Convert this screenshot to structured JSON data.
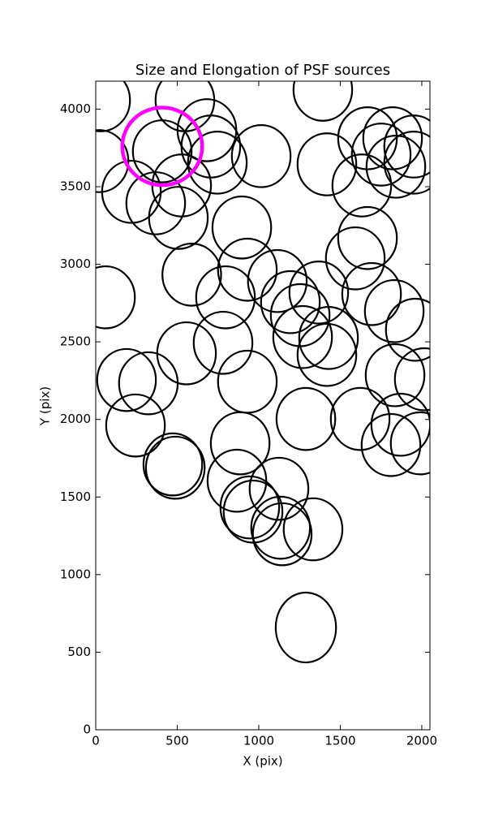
{
  "chart_data": {
    "type": "ellipse",
    "title": "Size and Elongation of PSF sources",
    "xlabel": "X (pix)",
    "ylabel": "Y (pix)",
    "xlim": [
      0,
      2050
    ],
    "ylim": [
      0,
      4180
    ],
    "xticks": [
      0,
      500,
      1000,
      1500,
      2000
    ],
    "yticks": [
      0,
      500,
      1000,
      1500,
      2000,
      2500,
      3000,
      3500,
      4000
    ],
    "sources": {
      "color": "#000000",
      "x": [
        30,
        547,
        1393,
        682,
        20,
        408,
        706,
        746,
        1015,
        1418,
        1667,
        1821,
        1950,
        1751,
        1841,
        1950,
        1632,
        219,
        368,
        527,
        507,
        896,
        1667,
        1592,
        589,
        930,
        1114,
        796,
        60,
        1194,
        1368,
        1692,
        1254,
        1831,
        1960,
        781,
        557,
        1269,
        1428,
        1418,
        189,
        323,
        930,
        1836,
        2015,
        244,
        1289,
        1622,
        1871,
        1811,
        1990,
        886,
        473,
        488,
        866,
        1124,
        945,
        965,
        1134,
        1144,
        1333,
        1289
      ],
      "y": [
        4057,
        4057,
        4125,
        3864,
        3665,
        3728,
        3759,
        3655,
        3697,
        3644,
        3812,
        3812,
        3759,
        3707,
        3629,
        3655,
        3508,
        3467,
        3393,
        3508,
        3299,
        3237,
        3169,
        3038,
        2933,
        2965,
        2892,
        2787,
        2787,
        2756,
        2818,
        2808,
        2672,
        2698,
        2578,
        2494,
        2426,
        2531,
        2525,
        2416,
        2254,
        2233,
        2243,
        2285,
        2259,
        1961,
        2003,
        2003,
        1966,
        1835,
        1846,
        1846,
        1710,
        1689,
        1605,
        1553,
        1433,
        1406,
        1302,
        1260,
        1292,
        659
      ],
      "width": [
        360,
        360,
        360,
        360,
        360,
        360,
        360,
        360,
        360,
        360,
        360,
        360,
        360,
        360,
        360,
        360,
        360,
        360,
        360,
        360,
        360,
        360,
        360,
        360,
        360,
        360,
        360,
        360,
        360,
        360,
        360,
        360,
        360,
        360,
        360,
        360,
        360,
        360,
        360,
        360,
        360,
        360,
        360,
        360,
        360,
        360,
        360,
        360,
        360,
        360,
        360,
        360,
        360,
        360,
        360,
        360,
        360,
        360,
        360,
        360,
        360,
        370
      ],
      "height": [
        400,
        400,
        400,
        400,
        400,
        400,
        400,
        400,
        400,
        400,
        400,
        400,
        400,
        400,
        400,
        400,
        400,
        400,
        400,
        400,
        400,
        400,
        400,
        400,
        400,
        400,
        400,
        400,
        400,
        400,
        400,
        400,
        400,
        400,
        400,
        400,
        400,
        400,
        400,
        400,
        400,
        400,
        400,
        400,
        400,
        400,
        400,
        400,
        400,
        400,
        400,
        400,
        400,
        400,
        400,
        400,
        400,
        400,
        400,
        400,
        400,
        450
      ]
    },
    "highlight": {
      "color": "#ff00ff",
      "x": [
        408
      ],
      "y": [
        3760
      ],
      "width": [
        490
      ],
      "height": [
        500
      ]
    }
  }
}
